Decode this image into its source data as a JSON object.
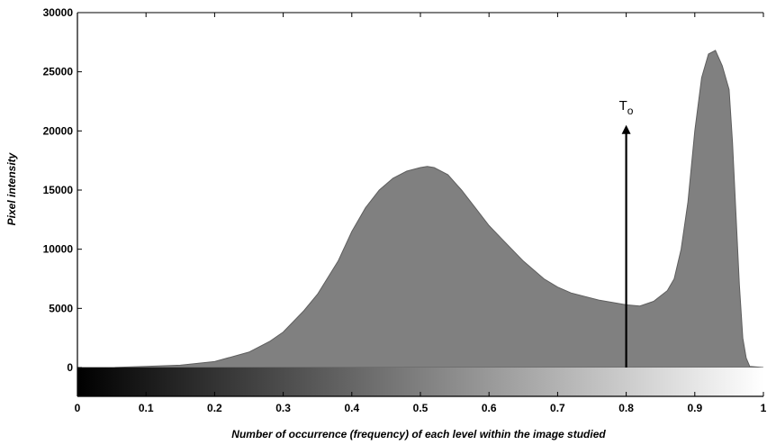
{
  "chart_data": {
    "type": "area",
    "title": "",
    "xlabel": "Number of occurrence (frequency) of each level within the image studied",
    "ylabel": "Pixel intensity",
    "xlim": [
      0,
      1
    ],
    "ylim": [
      0,
      30000
    ],
    "x_ticks": [
      "0",
      "0.1",
      "0.2",
      "0.3",
      "0.4",
      "0.5",
      "0.6",
      "0.7",
      "0.8",
      "0.9",
      "1"
    ],
    "y_ticks": [
      "0",
      "5000",
      "10000",
      "15000",
      "20000",
      "25000",
      "30000"
    ],
    "grid": false,
    "legend": "none",
    "colorbar": {
      "type": "grayscale",
      "from": "#000000",
      "to": "#ffffff",
      "range": [
        0,
        1
      ]
    },
    "fill_color": "#808080",
    "series": [
      {
        "x": [
          0.0,
          0.05,
          0.1,
          0.15,
          0.2,
          0.25,
          0.28,
          0.3,
          0.33,
          0.35,
          0.38,
          0.4,
          0.42,
          0.44,
          0.46,
          0.48,
          0.5,
          0.51,
          0.52,
          0.54,
          0.56,
          0.58,
          0.6,
          0.62,
          0.65,
          0.68,
          0.7,
          0.72,
          0.74,
          0.76,
          0.78,
          0.8,
          0.82,
          0.84,
          0.86,
          0.87,
          0.88,
          0.89,
          0.9,
          0.91,
          0.92,
          0.93,
          0.94,
          0.95,
          0.955,
          0.96,
          0.965,
          0.97,
          0.975,
          0.98,
          1.0
        ],
        "y": [
          0,
          0,
          100,
          200,
          500,
          1300,
          2200,
          3000,
          4800,
          6200,
          9000,
          11500,
          13500,
          15000,
          16000,
          16600,
          16900,
          17000,
          16900,
          16300,
          15000,
          13500,
          12000,
          10800,
          9000,
          7500,
          6800,
          6300,
          6000,
          5700,
          5500,
          5300,
          5200,
          5600,
          6500,
          7500,
          10000,
          14000,
          20000,
          24500,
          26500,
          26800,
          25500,
          23500,
          19000,
          13000,
          7000,
          2500,
          800,
          100,
          0
        ]
      }
    ],
    "annotations": [
      {
        "text": "T",
        "subscript": "o",
        "x": 0.8,
        "y_from": 0,
        "y_to": 20500,
        "type": "vertical-arrow"
      }
    ]
  }
}
